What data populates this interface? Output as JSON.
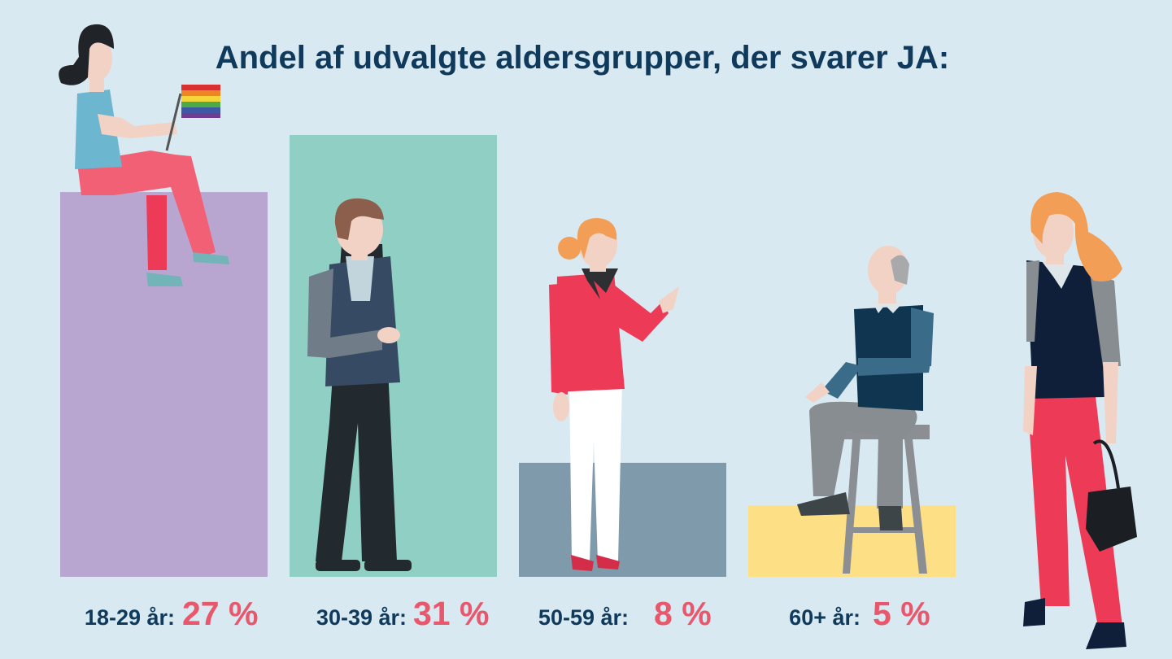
{
  "colors": {
    "background": "#d8e9f1",
    "title": "#0f3a5c",
    "value_text": "#e8576c",
    "bars": [
      "#b8a6d0",
      "#8fcfc4",
      "#7f9bab",
      "#fde085"
    ]
  },
  "chart_data": {
    "type": "bar",
    "title": "Andel af udvalgte aldersgrupper, der svarer JA:",
    "xlabel": "",
    "ylabel": "",
    "ylim": [
      0,
      31
    ],
    "grid": false,
    "categories": [
      "18-29 år:",
      "30-39 år:",
      "50-59 år:",
      "60+ år:"
    ],
    "values": [
      27,
      31,
      8,
      5
    ],
    "value_labels": [
      "27 %",
      "31 %",
      "8 %",
      "5 %"
    ]
  },
  "illustrations": [
    "woman-with-rainbow-flag-icon",
    "man-in-suit-icon",
    "woman-pointing-icon",
    "elderly-man-on-stool-icon",
    "woman-with-handbag-icon"
  ]
}
